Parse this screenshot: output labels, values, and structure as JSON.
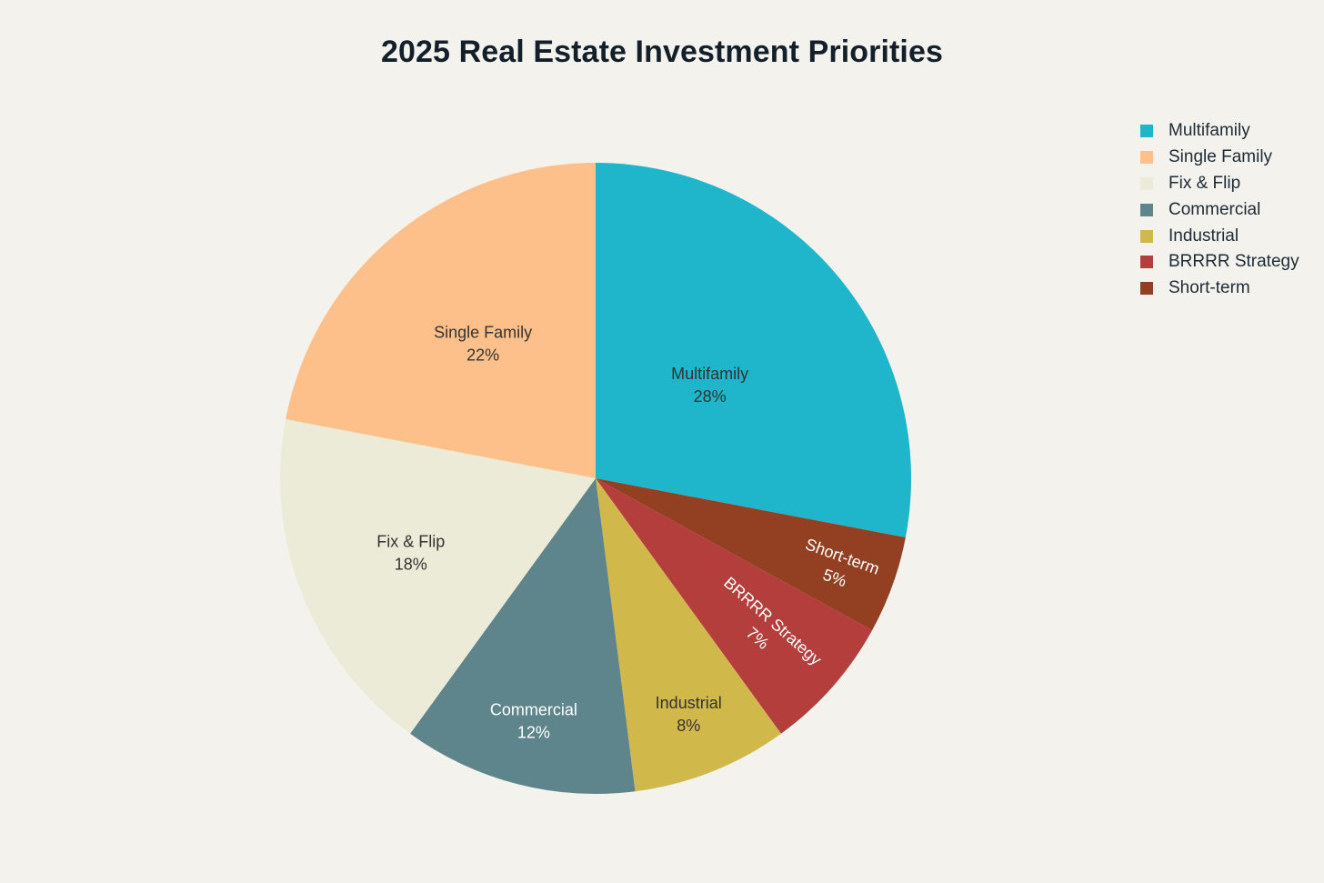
{
  "chart_data": {
    "type": "pie",
    "title": "2025 Real Estate Investment Priorities",
    "legend_position": "top-right",
    "slices": [
      {
        "label": "Multifamily",
        "value": 28,
        "value_label": "28%",
        "color": "#1fb5ca",
        "text_color": "#333333"
      },
      {
        "label": "Short-term",
        "value": 5,
        "value_label": "5%",
        "color": "#933f21",
        "text_color": "#ffffff"
      },
      {
        "label": "BRRRR Strategy",
        "value": 7,
        "value_label": "7%",
        "color": "#b43e3c",
        "text_color": "#ffffff"
      },
      {
        "label": "Industrial",
        "value": 8,
        "value_label": "8%",
        "color": "#d0b84b",
        "text_color": "#333333"
      },
      {
        "label": "Commercial",
        "value": 12,
        "value_label": "12%",
        "color": "#5d858b",
        "text_color": "#ffffff"
      },
      {
        "label": "Fix & Flip",
        "value": 18,
        "value_label": "18%",
        "color": "#ecebd7",
        "text_color": "#333333"
      },
      {
        "label": "Single Family",
        "value": 22,
        "value_label": "22%",
        "color": "#fec08a",
        "text_color": "#333333"
      }
    ],
    "legend_order": [
      "Multifamily",
      "Single Family",
      "Fix & Flip",
      "Commercial",
      "Industrial",
      "BRRRR Strategy",
      "Short-term"
    ]
  }
}
